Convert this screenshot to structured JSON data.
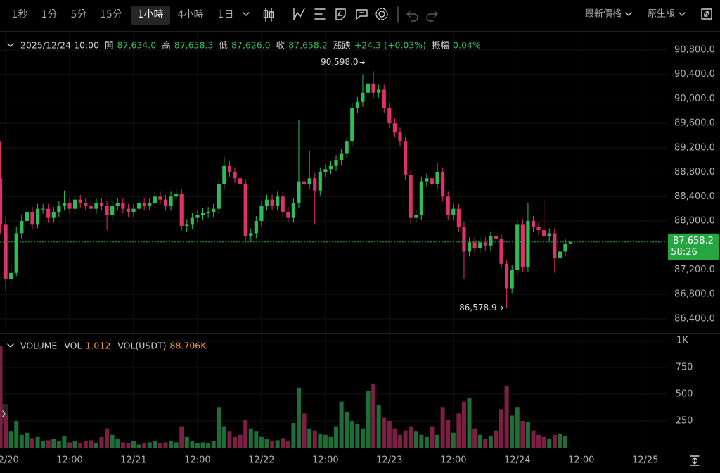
{
  "toolbar": {
    "intervals": [
      "1秒",
      "1分",
      "5分",
      "15分",
      "1小時",
      "4小時",
      "1日"
    ],
    "active_interval": 4,
    "price_type": "最新價格",
    "view": "原生版"
  },
  "chart_data": [
    {
      "type": "candlestick",
      "legend": {
        "date": "2025/12/24 10:00",
        "items": [
          {
            "label": "開",
            "value": "87,634.0"
          },
          {
            "label": "高",
            "value": "87,658.3"
          },
          {
            "label": "低",
            "value": "87,626.0"
          },
          {
            "label": "收",
            "value": "87,658.2"
          },
          {
            "label": "漲跌",
            "value": "+24.3 (+0.03%)"
          },
          {
            "label": "振幅",
            "value": "0.04%"
          }
        ]
      },
      "categories": [
        null,
        "12/20",
        null,
        null,
        null,
        null,
        null,
        null,
        null,
        null,
        null,
        null,
        null,
        "12:00",
        null,
        null,
        null,
        null,
        null,
        null,
        null,
        null,
        null,
        null,
        null,
        "12/21",
        null,
        null,
        null,
        null,
        null,
        null,
        null,
        null,
        null,
        null,
        null,
        "12:00",
        null,
        null,
        null,
        null,
        null,
        null,
        null,
        null,
        null,
        null,
        null,
        "12/22",
        null,
        null,
        null,
        null,
        null,
        null,
        null,
        null,
        null,
        null,
        null,
        "12:00",
        null,
        null,
        null,
        null,
        null,
        null,
        null,
        null,
        null,
        null,
        null,
        "12/23",
        null,
        null,
        null,
        null,
        null,
        null,
        null,
        null,
        null,
        null,
        null,
        "12:00",
        null,
        null,
        null,
        null,
        null,
        null,
        null,
        null,
        null,
        null,
        null,
        "12/24",
        null,
        null,
        null,
        null,
        null,
        null,
        null,
        null,
        null,
        null,
        null,
        "12:00",
        null,
        null,
        null,
        null,
        null,
        null,
        null,
        null,
        null,
        null,
        null,
        "12/25",
        null,
        null,
        null
      ],
      "open": [
        88700,
        87950,
        87050,
        87150,
        87800,
        88000,
        88150,
        87950,
        88200,
        88200,
        88050,
        88150,
        88250,
        88300,
        88200,
        88350,
        88300,
        88250,
        88200,
        88300,
        88250,
        88100,
        88250,
        88300,
        88200,
        88150,
        88200,
        88300,
        88250,
        88300,
        88400,
        88350,
        88250,
        88400,
        88450,
        87920,
        87950,
        88050,
        88100,
        88130,
        88150,
        88200,
        88600,
        88900,
        88800,
        88700,
        88600,
        87750,
        87800,
        88000,
        88250,
        88350,
        88250,
        88400,
        88150,
        88050,
        88300,
        88650,
        88600,
        88700,
        88500,
        88800,
        88850,
        88900,
        89000,
        89100,
        89300,
        89850,
        89950,
        90100,
        90250,
        90100,
        90150,
        89850,
        89600,
        89450,
        89300,
        88750,
        88050,
        88100,
        88650,
        88700,
        88600,
        88800,
        88400,
        88100,
        88200,
        87900,
        87500,
        87650,
        87550,
        87650,
        87600,
        87750,
        87700,
        87300,
        86900,
        87200,
        87950,
        87250,
        88000,
        87900,
        87850,
        87750,
        87800,
        87400,
        87500,
        87634,
        null,
        null,
        null,
        null,
        null,
        null,
        null,
        null,
        null,
        null,
        null,
        null,
        null,
        null,
        null,
        null,
        null
      ],
      "high": [
        89300,
        88050,
        87300,
        87900,
        88100,
        88250,
        88230,
        88280,
        88280,
        88280,
        88230,
        88330,
        88500,
        88380,
        88430,
        88430,
        88380,
        88330,
        88380,
        88380,
        88330,
        88330,
        88380,
        88380,
        88280,
        88280,
        88380,
        88380,
        88380,
        88480,
        88480,
        88430,
        88480,
        88530,
        88530,
        88030,
        88130,
        88180,
        88210,
        88230,
        88280,
        88700,
        89050,
        88980,
        88880,
        88780,
        88680,
        87880,
        88080,
        88330,
        88430,
        88430,
        88480,
        88480,
        88230,
        88380,
        89650,
        88730,
        89150,
        88780,
        88880,
        88930,
        88980,
        89080,
        89180,
        89380,
        89930,
        90030,
        90400,
        90598,
        90450,
        90230,
        90230,
        89930,
        89680,
        89530,
        89380,
        88830,
        88180,
        88730,
        88780,
        88780,
        88950,
        88880,
        88480,
        88280,
        88280,
        87980,
        87730,
        87730,
        87730,
        87730,
        87830,
        87830,
        87780,
        87350,
        87280,
        88030,
        88030,
        88300,
        88080,
        87980,
        88350,
        87880,
        87880,
        87580,
        87710,
        87658.3,
        null,
        null,
        null,
        null,
        null,
        null,
        null,
        null,
        null,
        null,
        null,
        null,
        null,
        null,
        null,
        null,
        null
      ],
      "low": [
        87800,
        86850,
        86950,
        87100,
        87700,
        87900,
        87870,
        87880,
        88120,
        87970,
        87970,
        88070,
        88170,
        88120,
        88120,
        88220,
        88170,
        88120,
        88120,
        88170,
        87850,
        88020,
        88170,
        88120,
        88070,
        88070,
        88120,
        88170,
        88170,
        88220,
        88270,
        88170,
        88170,
        88320,
        87840,
        87820,
        87870,
        87970,
        88020,
        88050,
        88070,
        88120,
        88520,
        88720,
        88620,
        88520,
        87650,
        87670,
        87720,
        87920,
        88170,
        88170,
        88170,
        88070,
        87970,
        87970,
        88220,
        88520,
        88520,
        87950,
        88420,
        88720,
        88770,
        88820,
        88920,
        89020,
        89220,
        89770,
        89870,
        90020,
        90020,
        90020,
        89770,
        89520,
        89370,
        89220,
        88670,
        87950,
        87970,
        88020,
        88570,
        88520,
        88520,
        88320,
        88020,
        88020,
        87820,
        87050,
        87420,
        87470,
        87470,
        87520,
        87520,
        87620,
        87220,
        86578.9,
        86820,
        87120,
        87170,
        87170,
        87820,
        87770,
        87670,
        87670,
        87150,
        87320,
        87420,
        87626,
        null,
        null,
        null,
        null,
        null,
        null,
        null,
        null,
        null,
        null,
        null,
        null,
        null,
        null,
        null,
        null,
        null
      ],
      "close": [
        87950,
        87050,
        87150,
        87800,
        88000,
        88150,
        87950,
        88200,
        88200,
        88050,
        88150,
        88250,
        88300,
        88200,
        88350,
        88300,
        88250,
        88200,
        88300,
        88250,
        88100,
        88250,
        88300,
        88200,
        88150,
        88200,
        88300,
        88250,
        88300,
        88400,
        88350,
        88250,
        88400,
        88450,
        87920,
        87950,
        88050,
        88100,
        88130,
        88150,
        88200,
        88600,
        88900,
        88800,
        88700,
        88600,
        87750,
        87800,
        88000,
        88250,
        88350,
        88250,
        88400,
        88150,
        88050,
        88300,
        88650,
        88600,
        88700,
        88500,
        88800,
        88850,
        88900,
        89000,
        89100,
        89300,
        89850,
        89950,
        90100,
        90250,
        90100,
        90150,
        89850,
        89600,
        89450,
        89300,
        88750,
        88050,
        88100,
        88650,
        88700,
        88600,
        88800,
        88400,
        88100,
        88200,
        87900,
        87500,
        87650,
        87550,
        87650,
        87600,
        87750,
        87700,
        87300,
        86900,
        87200,
        87950,
        87250,
        88000,
        87900,
        87850,
        87750,
        87800,
        87400,
        87500,
        87634,
        87658.2,
        null,
        null,
        null,
        null,
        null,
        null,
        null,
        null,
        null,
        null,
        null,
        null,
        null,
        null,
        null,
        null,
        null
      ],
      "up_color": "#2ebd55",
      "down_color": "#e0306a",
      "ylim": [
        86180,
        91088
      ],
      "yticks": [
        {
          "value": 90800,
          "label": "90,800.0"
        },
        {
          "value": 90400,
          "label": "90,400.0"
        },
        {
          "value": 90000,
          "label": "90,000.0"
        },
        {
          "value": 89600,
          "label": "89,600.0"
        },
        {
          "value": 89200,
          "label": "89,200.0"
        },
        {
          "value": 88800,
          "label": "88,800.0"
        },
        {
          "value": 88400,
          "label": "88,400.0"
        },
        {
          "value": 88000,
          "label": "88,000.0"
        },
        {
          "value": 87200,
          "label": "87,200.0"
        },
        {
          "value": 86800,
          "label": "86,800.0"
        },
        {
          "value": 86400,
          "label": "86,400.0"
        }
      ],
      "grid": true,
      "last_price": {
        "value": 87658.2,
        "label": "87,658.2",
        "color": "#26a641"
      },
      "countdown": "58:26",
      "annotations": [
        {
          "value": 90598,
          "label": "90,598.0"
        },
        {
          "value": 86578.9,
          "label": "86,578.9"
        }
      ]
    },
    {
      "type": "bar",
      "title": "VOLUME",
      "legend": [
        {
          "label": "VOL",
          "value": "1.012"
        },
        {
          "label": "VOL(USDT)",
          "value": "88.706K"
        }
      ],
      "values": [
        950,
        300,
        150,
        250,
        120,
        140,
        90,
        100,
        60,
        70,
        80,
        60,
        110,
        50,
        60,
        40,
        60,
        70,
        40,
        100,
        180,
        120,
        80,
        50,
        40,
        60,
        30,
        40,
        50,
        60,
        40,
        50,
        60,
        50,
        200,
        100,
        60,
        40,
        50,
        40,
        60,
        380,
        200,
        150,
        100,
        120,
        260,
        180,
        150,
        100,
        80,
        60,
        70,
        90,
        60,
        230,
        560,
        320,
        180,
        160,
        130,
        120,
        100,
        200,
        430,
        330,
        250,
        220,
        180,
        530,
        600,
        400,
        280,
        250,
        180,
        120,
        160,
        200,
        150,
        120,
        100,
        200,
        120,
        380,
        260,
        140,
        320,
        430,
        460,
        180,
        120,
        80,
        110,
        160,
        360,
        580,
        300,
        380,
        250,
        240,
        160,
        120,
        100,
        80,
        120,
        130,
        110,
        1.012,
        null,
        null,
        null,
        null,
        null,
        null,
        null,
        null,
        null,
        null,
        null,
        null,
        null,
        null,
        null,
        null,
        null
      ],
      "up_color": "#1f6e37",
      "down_color": "#7c2043",
      "ylim": [
        0,
        1066
      ],
      "yticks": [
        250,
        500,
        750,
        {
          "value": 1000,
          "label": "1K"
        }
      ],
      "grid": true
    }
  ]
}
